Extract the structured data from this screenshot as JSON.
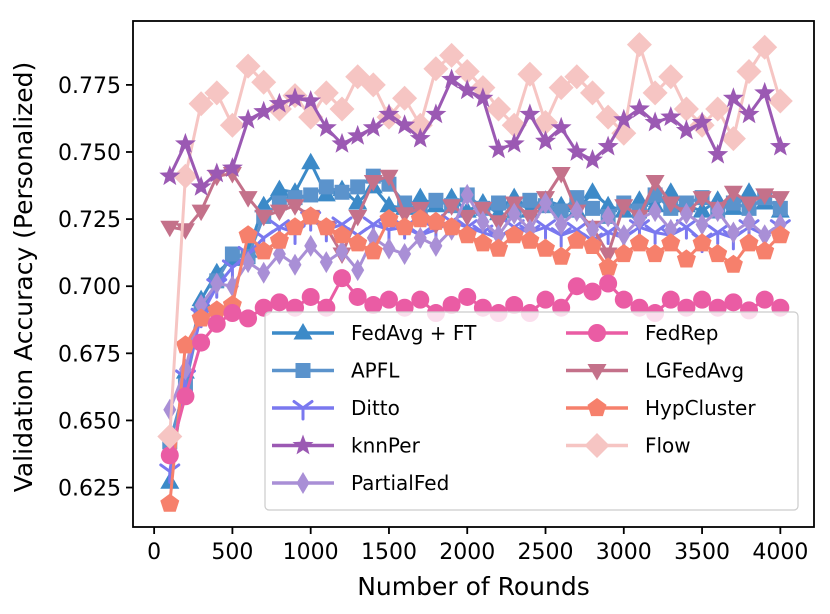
{
  "chart_data": {
    "type": "line",
    "xlabel": "Number of Rounds",
    "ylabel": "Validation Accuracy (Personalized)",
    "xlim": [
      -135,
      4215
    ],
    "ylim": [
      0.6103,
      0.7988
    ],
    "grid": false,
    "legend_position": "lower center, inside axes, two columns",
    "xticks": {
      "values": [
        0,
        500,
        1000,
        1500,
        2000,
        2500,
        3000,
        3500,
        4000
      ],
      "labels": [
        "0",
        "500",
        "1000",
        "1500",
        "2000",
        "2500",
        "3000",
        "3500",
        "4000"
      ]
    },
    "yticks": {
      "values": [
        0.625,
        0.65,
        0.675,
        0.7,
        0.725,
        0.75,
        0.775
      ],
      "labels": [
        "0.625",
        "0.650",
        "0.675",
        "0.700",
        "0.725",
        "0.750",
        "0.775"
      ]
    },
    "x": [
      100,
      200,
      300,
      400,
      500,
      600,
      700,
      800,
      900,
      1000,
      1100,
      1200,
      1300,
      1400,
      1500,
      1600,
      1700,
      1800,
      1900,
      2000,
      2100,
      2200,
      2300,
      2400,
      2500,
      2600,
      2700,
      2800,
      2900,
      3000,
      3100,
      3200,
      3300,
      3400,
      3500,
      3600,
      3700,
      3800,
      3900,
      4000
    ],
    "series": [
      {
        "name": "FedAvg + FT",
        "marker": "triangle-up",
        "color": "#3c8ac8",
        "values": [
          0.627,
          0.668,
          0.695,
          0.705,
          0.71,
          0.713,
          0.73,
          0.736,
          0.735,
          0.746,
          0.734,
          0.736,
          0.731,
          0.737,
          0.73,
          0.729,
          0.733,
          0.73,
          0.733,
          0.728,
          0.731,
          0.727,
          0.733,
          0.728,
          0.732,
          0.73,
          0.728,
          0.735,
          0.73,
          0.728,
          0.732,
          0.73,
          0.735,
          0.73,
          0.728,
          0.732,
          0.729,
          0.735,
          0.731,
          0.728
        ]
      },
      {
        "name": "APFL",
        "marker": "square",
        "color": "#5b93cc",
        "values": [
          0.642,
          0.663,
          0.69,
          0.702,
          0.712,
          0.711,
          0.726,
          0.731,
          0.733,
          0.734,
          0.737,
          0.735,
          0.737,
          0.741,
          0.738,
          0.731,
          0.728,
          0.732,
          0.73,
          0.734,
          0.729,
          0.731,
          0.728,
          0.732,
          0.73,
          0.728,
          0.733,
          0.729,
          0.726,
          0.731,
          0.728,
          0.734,
          0.729,
          0.731,
          0.733,
          0.728,
          0.731,
          0.729,
          0.733,
          0.729
        ]
      },
      {
        "name": "Ditto",
        "marker": "tri-down",
        "color": "#7a78ef",
        "values": [
          0.631,
          0.666,
          0.689,
          0.7,
          0.707,
          0.712,
          0.718,
          0.722,
          0.72,
          0.725,
          0.721,
          0.723,
          0.719,
          0.723,
          0.721,
          0.722,
          0.719,
          0.721,
          0.724,
          0.722,
          0.72,
          0.718,
          0.722,
          0.72,
          0.722,
          0.719,
          0.721,
          0.717,
          0.72,
          0.718,
          0.722,
          0.72,
          0.719,
          0.722,
          0.717,
          0.72,
          0.718,
          0.722,
          0.719,
          0.722
        ]
      },
      {
        "name": "knnPer",
        "marker": "star",
        "color": "#9b59b3",
        "values": [
          0.741,
          0.753,
          0.737,
          0.742,
          0.744,
          0.762,
          0.765,
          0.768,
          0.77,
          0.769,
          0.759,
          0.753,
          0.756,
          0.759,
          0.764,
          0.76,
          0.755,
          0.764,
          0.777,
          0.773,
          0.77,
          0.751,
          0.753,
          0.764,
          0.754,
          0.759,
          0.75,
          0.747,
          0.752,
          0.762,
          0.766,
          0.761,
          0.763,
          0.758,
          0.761,
          0.749,
          0.77,
          0.764,
          0.772,
          0.752
        ]
      },
      {
        "name": "PartialFed",
        "marker": "thin-diamond",
        "color": "#a98fd6",
        "values": [
          0.654,
          0.669,
          0.693,
          0.701,
          0.7,
          0.709,
          0.705,
          0.712,
          0.708,
          0.715,
          0.709,
          0.713,
          0.706,
          0.718,
          0.714,
          0.712,
          0.718,
          0.715,
          0.721,
          0.734,
          0.724,
          0.719,
          0.727,
          0.721,
          0.731,
          0.723,
          0.728,
          0.721,
          0.726,
          0.719,
          0.725,
          0.728,
          0.721,
          0.727,
          0.723,
          0.728,
          0.72,
          0.724,
          0.719,
          0.723
        ]
      },
      {
        "name": "FedRep",
        "marker": "circle",
        "color": "#ea5ca4",
        "values": [
          0.637,
          0.659,
          0.679,
          0.686,
          0.69,
          0.688,
          0.692,
          0.694,
          0.692,
          0.696,
          0.692,
          0.703,
          0.696,
          0.693,
          0.695,
          0.692,
          0.695,
          0.69,
          0.693,
          0.696,
          0.692,
          0.69,
          0.693,
          0.69,
          0.695,
          0.692,
          0.7,
          0.698,
          0.701,
          0.695,
          0.692,
          0.69,
          0.695,
          0.692,
          0.695,
          0.692,
          0.694,
          0.691,
          0.695,
          0.692
        ]
      },
      {
        "name": "LGFedAvg",
        "marker": "triangle-down",
        "color": "#c4718a",
        "values": [
          0.722,
          0.721,
          0.728,
          0.741,
          0.742,
          0.733,
          0.726,
          0.728,
          0.73,
          0.726,
          0.722,
          0.712,
          0.726,
          0.739,
          0.741,
          0.727,
          0.729,
          0.723,
          0.73,
          0.726,
          0.729,
          0.724,
          0.731,
          0.726,
          0.733,
          0.742,
          0.728,
          0.722,
          0.712,
          0.73,
          0.726,
          0.739,
          0.731,
          0.727,
          0.733,
          0.729,
          0.735,
          0.731,
          0.734,
          0.733
        ]
      },
      {
        "name": "HypCluster",
        "marker": "pentagon",
        "color": "#f6806c",
        "values": [
          0.619,
          0.678,
          0.688,
          0.691,
          0.693,
          0.719,
          0.713,
          0.717,
          0.722,
          0.726,
          0.722,
          0.719,
          0.716,
          0.713,
          0.725,
          0.722,
          0.725,
          0.724,
          0.722,
          0.719,
          0.716,
          0.714,
          0.719,
          0.717,
          0.714,
          0.711,
          0.717,
          0.715,
          0.707,
          0.712,
          0.716,
          0.712,
          0.716,
          0.71,
          0.716,
          0.712,
          0.708,
          0.716,
          0.713,
          0.719
        ]
      },
      {
        "name": "Flow",
        "marker": "diamond",
        "color": "#f6c5c3",
        "values": [
          0.644,
          0.741,
          0.768,
          0.772,
          0.76,
          0.782,
          0.776,
          0.766,
          0.771,
          0.763,
          0.772,
          0.766,
          0.778,
          0.775,
          0.763,
          0.77,
          0.76,
          0.781,
          0.786,
          0.78,
          0.774,
          0.766,
          0.76,
          0.779,
          0.761,
          0.774,
          0.778,
          0.772,
          0.763,
          0.757,
          0.79,
          0.772,
          0.778,
          0.766,
          0.76,
          0.766,
          0.755,
          0.78,
          0.789,
          0.769
        ]
      }
    ],
    "legend_columns": [
      [
        "FedAvg + FT",
        "APFL",
        "Ditto",
        "knnPer",
        "PartialFed"
      ],
      [
        "FedRep",
        "LGFedAvg",
        "HypCluster",
        "Flow"
      ]
    ],
    "draw_order": [
      "FedAvg + FT",
      "APFL",
      "Ditto",
      "LGFedAvg",
      "PartialFed",
      "HypCluster",
      "FedRep",
      "Flow",
      "knnPer"
    ],
    "colors": {
      "axis": "#000000",
      "legend_border": "#cccccc",
      "legend_background": "rgba(255,255,255,0.8)"
    }
  }
}
